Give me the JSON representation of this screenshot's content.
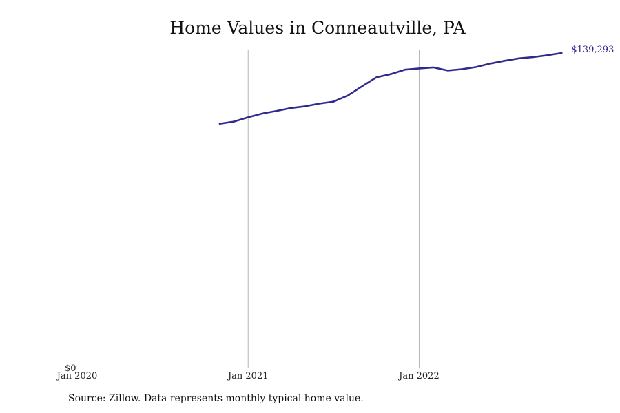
{
  "chart_data": {
    "type": "line",
    "title": "Home Values in Conneautville, PA",
    "source": "Source: Zillow. Data represents monthly typical home value.",
    "xlabel": "",
    "ylabel": "",
    "x_ticks": [
      "Jan 2020",
      "Jan 2021",
      "Jan 2022"
    ],
    "y_ticks": [
      "$0"
    ],
    "end_label": "$139,293",
    "xlim": [
      "2020-01",
      "2022-12"
    ],
    "ylim": [
      0,
      139293
    ],
    "grid": {
      "vertical": true,
      "horizontal": false
    },
    "line_color": "#2f2a8c",
    "series": [
      {
        "x": [
          "2020-11",
          "2020-12",
          "2021-01",
          "2021-02",
          "2021-03",
          "2021-04",
          "2021-05",
          "2021-06",
          "2021-07",
          "2021-08",
          "2021-09",
          "2021-10",
          "2021-11",
          "2021-12",
          "2022-01",
          "2022-02",
          "2022-03",
          "2022-04",
          "2022-05",
          "2022-06",
          "2022-07",
          "2022-08",
          "2022-09",
          "2022-10",
          "2022-11"
        ],
        "values": [
          107981,
          108936,
          110825,
          112492,
          113670,
          114948,
          115700,
          116900,
          117784,
          120474,
          124571,
          128499,
          129934,
          131905,
          132462,
          132917,
          131540,
          132117,
          133074,
          134626,
          135859,
          136913,
          137462,
          138300,
          139293
        ]
      }
    ]
  }
}
